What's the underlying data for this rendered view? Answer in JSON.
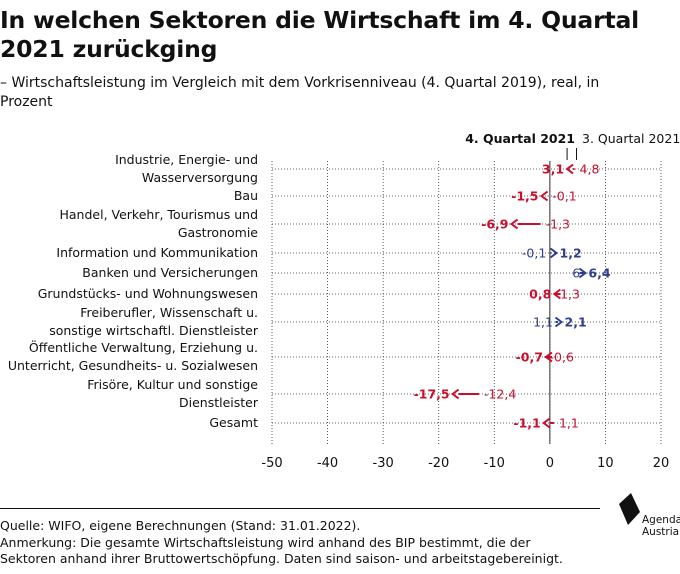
{
  "title": "In welchen Sektoren die Wirtschaft im 4. Quartal 2021 zurückging",
  "subtitle": "– Wirtschaftsleistung im Vergleich mit dem Vorkrisenniveau (4. Quartal 2019), real, in Prozent",
  "colors": {
    "negative": "#c8102e",
    "positive": "#2e3e8c",
    "text": "#111111",
    "grid": "#333333"
  },
  "chart_data": {
    "type": "dumbbell",
    "series": [
      {
        "name": "4. Quartal 2021"
      },
      {
        "name": "3. Quartal 2021"
      }
    ],
    "categories": [
      [
        "Industrie, Energie- und",
        "Wasserversorgung"
      ],
      [
        "Bau"
      ],
      [
        "Handel, Verkehr, Tourismus und",
        "Gastronomie"
      ],
      [
        "Information und Kommunikation"
      ],
      [
        "Banken und Versicherungen"
      ],
      [
        "Grundstücks- und Wohnungswesen"
      ],
      [
        "Freiberufler, Wissenschaft u.",
        "sonstige wirtschaftl. Dienstleister"
      ],
      [
        "Öffentliche Verwaltung, Erziehung u.",
        "Unterricht, Gesundheits- u. Sozialwesen"
      ],
      [
        "Frisöre, Kultur und sonstige",
        "Dienstleister"
      ],
      [
        "Gesamt"
      ]
    ],
    "q4_2021": [
      3.1,
      -1.5,
      -6.9,
      1.2,
      6.4,
      0.8,
      2.1,
      -0.7,
      -17.5,
      -1.1
    ],
    "q3_2021": [
      4.8,
      -0.1,
      -1.3,
      -0.1,
      6,
      1.3,
      1.1,
      -0.6,
      -12.4,
      1.1
    ],
    "q4_labels": [
      "3,1",
      "-1,5",
      "-6,9",
      "1,2",
      "6,4",
      "0,8",
      "2,1",
      "-0,7",
      "-17,5",
      "-1,1"
    ],
    "q3_labels": [
      "4,8",
      "-0,1",
      "-1,3",
      "-0,1",
      "6",
      "1,3",
      "1,1",
      "-0,6",
      "-12,4",
      "1,1"
    ],
    "xlim": [
      -50,
      20
    ],
    "xticks": [
      -50,
      -40,
      -30,
      -20,
      -10,
      0,
      10,
      20
    ],
    "xtick_labels": [
      "-50",
      "-40",
      "-30",
      "-20",
      "-10",
      "0",
      "10",
      "20"
    ],
    "grid": "vertical dotted"
  },
  "footer": {
    "source": "Quelle: WIFO, eigene Berechnungen (Stand: 31.01.2022).",
    "note1": "Anmerkung: Die gesamte Wirtschaftsleistung wird anhand des BIP bestimmt, die der",
    "note2": "Sektoren anhand ihrer Bruttowertschöpfung. Daten sind saison- und arbeitstagebereinigt."
  },
  "logo": {
    "line1": "Agenda",
    "line2": "Austria"
  }
}
